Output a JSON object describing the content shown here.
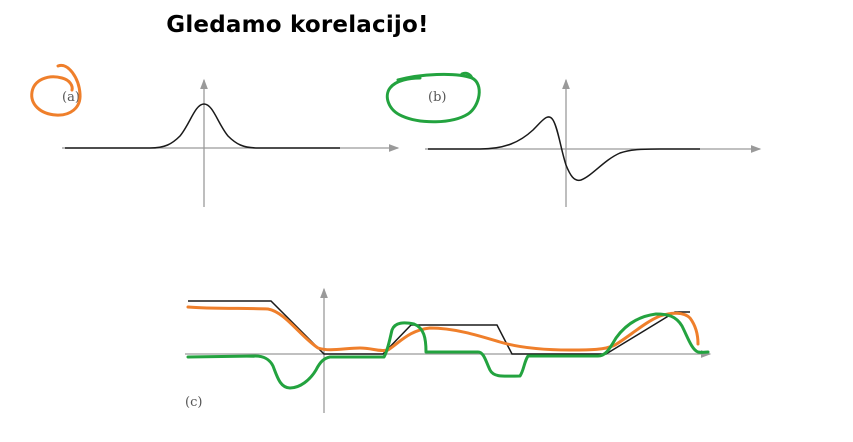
{
  "slide": {
    "title": "Gledamo korelacijo!"
  },
  "panels": [
    {
      "id": "a",
      "label": "(a)",
      "curve": "symmetric peak",
      "annotation_color": "#ef7f2b"
    },
    {
      "id": "b",
      "label": "(b)",
      "curve": "derivative-like (positive lobe then negative lobe)",
      "annotation_color": "#23a33f"
    },
    {
      "id": "c",
      "label": "(c)",
      "curve": "piecewise-linear signal with overlaid orange and green traces",
      "trace_colors": [
        "#ef7f2b",
        "#23a33f"
      ]
    }
  ],
  "colors": {
    "axis": "#9a9a9a",
    "curve": "#1a1a1a",
    "orange": "#ef7f2b",
    "green": "#23a33f"
  }
}
